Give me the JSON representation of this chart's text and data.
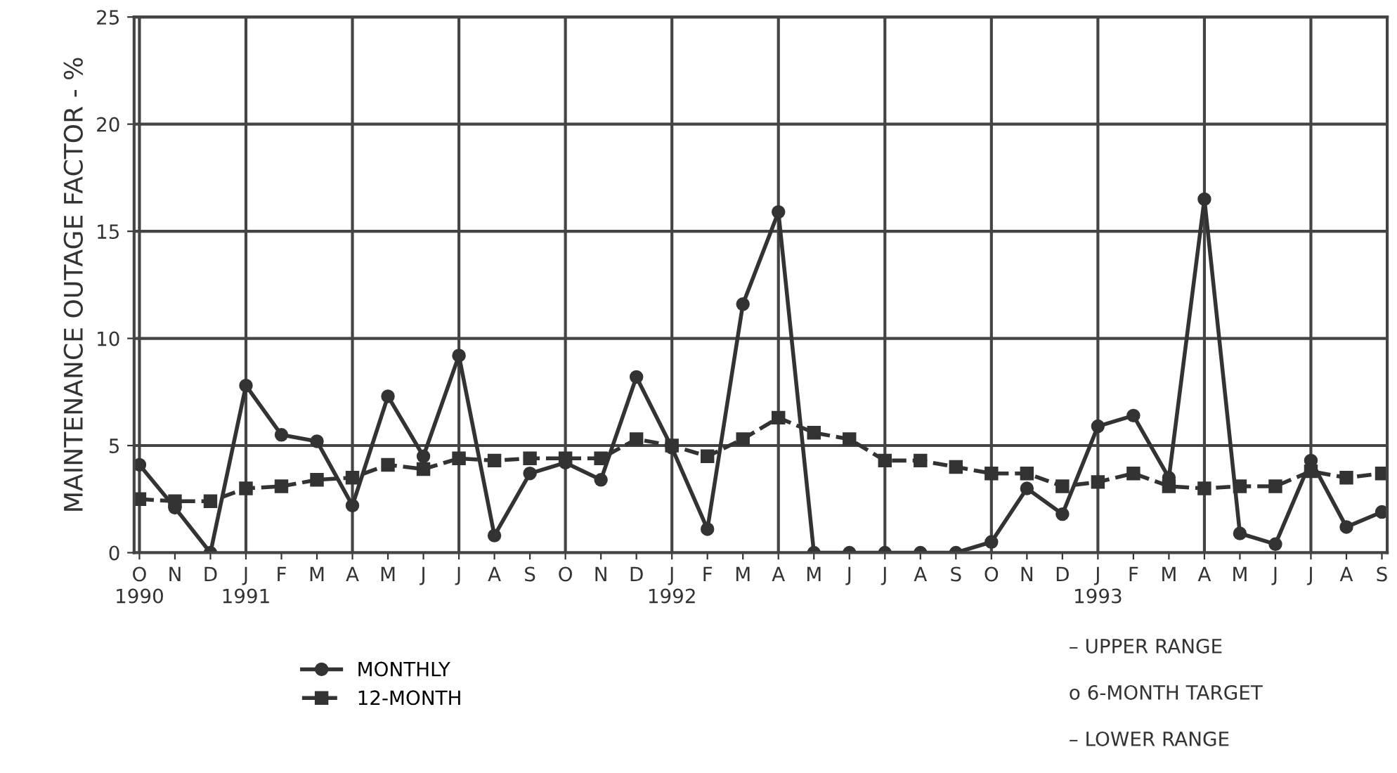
{
  "chart_data": {
    "type": "line",
    "ylabel": "MAINTENANCE OUTAGE FACTOR - %",
    "categories": [
      "O\n1990",
      "N",
      "D",
      "J\n1991",
      "F",
      "M",
      "A",
      "M",
      "J",
      "J",
      "A",
      "S",
      "O",
      "N",
      "D",
      "J\n1992",
      "F",
      "M",
      "A",
      "M",
      "J",
      "J",
      "A",
      "S",
      "O",
      "N",
      "D",
      "J\n1993",
      "F",
      "M",
      "A",
      "M",
      "J",
      "J",
      "A",
      "S"
    ],
    "series": [
      {
        "name": "MONTHLY",
        "color": "#333333",
        "marker": "circle",
        "line_style": "solid",
        "values": [
          4.1,
          2.1,
          0,
          7.8,
          5.5,
          5.2,
          2.2,
          7.3,
          4.5,
          9.2,
          0.8,
          3.7,
          4.2,
          3.4,
          8.2,
          4.9,
          1.1,
          11.6,
          15.9,
          0,
          0,
          0,
          0,
          0,
          0.5,
          3.0,
          1.8,
          5.9,
          6.4,
          3.5,
          16.5,
          0.9,
          0.4,
          4.3,
          1.2,
          1.9
        ]
      },
      {
        "name": "12-MONTH",
        "color": "#333333",
        "marker": "square",
        "line_style": "dashed",
        "values": [
          2.5,
          2.4,
          2.4,
          3.0,
          3.1,
          3.4,
          3.5,
          4.1,
          3.9,
          4.4,
          4.3,
          4.4,
          4.4,
          4.4,
          5.3,
          5.0,
          4.5,
          5.3,
          6.3,
          5.6,
          5.3,
          4.3,
          4.3,
          4.0,
          3.7,
          3.7,
          3.1,
          3.3,
          3.7,
          3.1,
          3.0,
          3.1,
          3.1,
          3.8,
          3.5,
          3.7
        ]
      }
    ],
    "ylim": [
      0,
      25
    ],
    "yticks": [
      0,
      5,
      10,
      15,
      20,
      25
    ],
    "grid": true,
    "legend": "bottom left",
    "annotations": [
      "– UPPER RANGE",
      "o 6-MONTH TARGET",
      "– LOWER RANGE"
    ]
  }
}
